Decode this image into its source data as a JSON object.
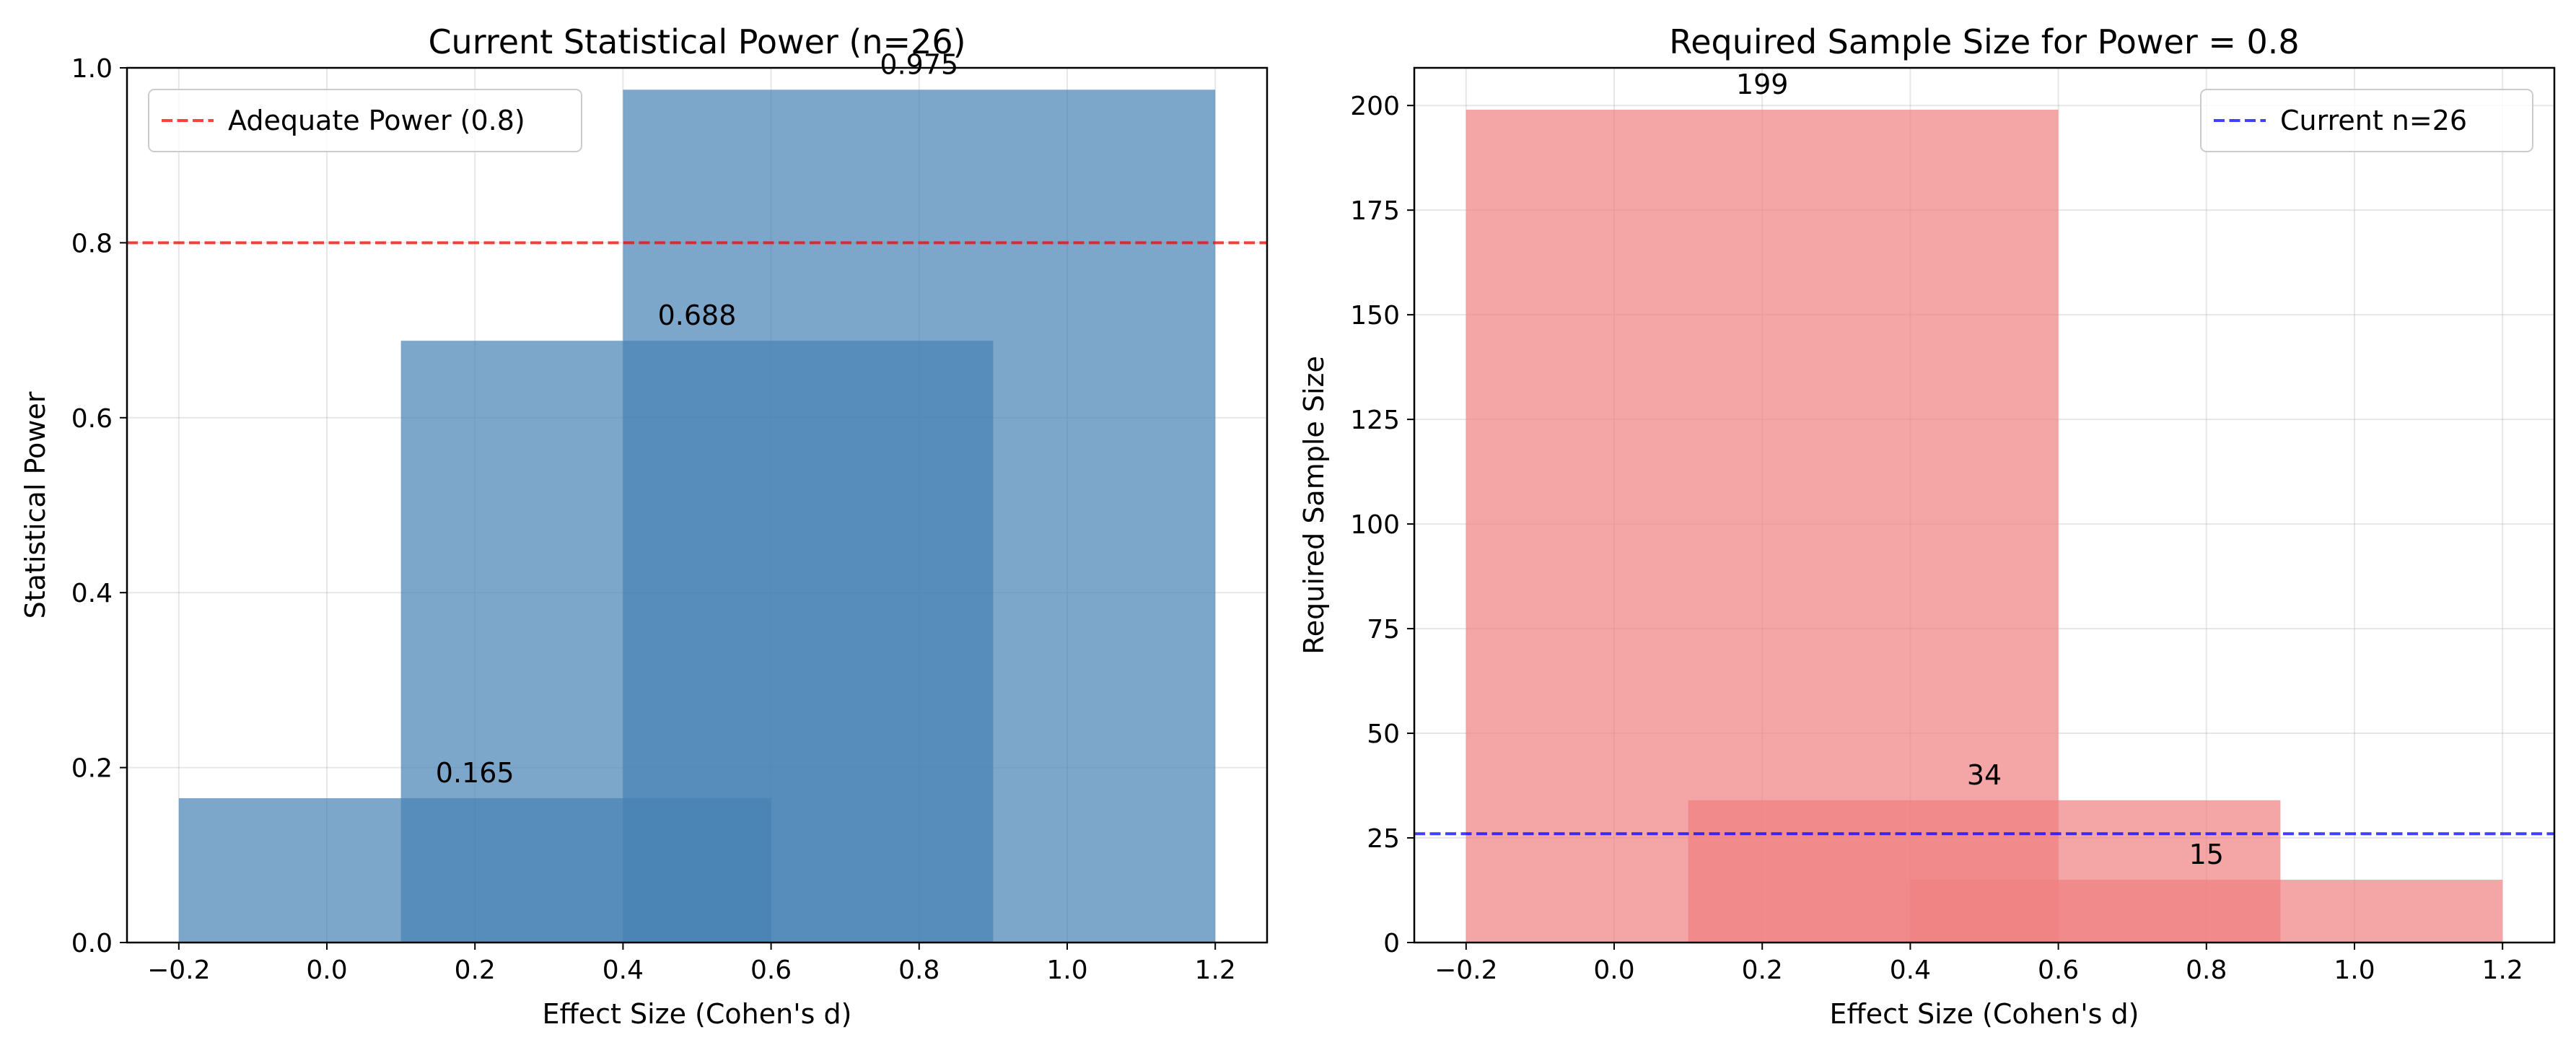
{
  "chart_data": [
    {
      "type": "bar",
      "title": "Current Statistical Power (n=26)",
      "xlabel": "Effect Size (Cohen's d)",
      "ylabel": "Statistical Power",
      "bar_width": 0.8,
      "x": [
        0.2,
        0.5,
        0.8
      ],
      "values": [
        0.165,
        0.688,
        0.975
      ],
      "bar_labels": [
        "0.165",
        "0.688",
        "0.975"
      ],
      "xlim": [
        -0.27,
        1.27
      ],
      "ylim": [
        0.0,
        1.0
      ],
      "xticks": [
        -0.2,
        0.0,
        0.2,
        0.4,
        0.6,
        0.8,
        1.0,
        1.2
      ],
      "xtick_labels": [
        "−0.2",
        "0.0",
        "0.2",
        "0.4",
        "0.6",
        "0.8",
        "1.0",
        "1.2"
      ],
      "yticks": [
        0.0,
        0.2,
        0.4,
        0.6,
        0.8,
        1.0
      ],
      "ytick_labels": [
        "0.0",
        "0.2",
        "0.4",
        "0.6",
        "0.8",
        "1.0"
      ],
      "bar_color": "#4682b4",
      "reference_line": {
        "y": 0.8,
        "label": "Adequate Power (0.8)",
        "color": "#ff0000",
        "style": "dashed"
      },
      "legend": "upper left",
      "grid": true
    },
    {
      "type": "bar",
      "title": "Required Sample Size for Power = 0.8",
      "xlabel": "Effect Size (Cohen's d)",
      "ylabel": "Required Sample Size",
      "bar_width": 0.8,
      "x": [
        0.2,
        0.5,
        0.8
      ],
      "values": [
        199,
        34,
        15
      ],
      "bar_labels": [
        "199",
        "34",
        "15"
      ],
      "xlim": [
        -0.27,
        1.27
      ],
      "ylim": [
        0,
        209
      ],
      "xticks": [
        -0.2,
        0.0,
        0.2,
        0.4,
        0.6,
        0.8,
        1.0,
        1.2
      ],
      "xtick_labels": [
        "−0.2",
        "0.0",
        "0.2",
        "0.4",
        "0.6",
        "0.8",
        "1.0",
        "1.2"
      ],
      "yticks": [
        0,
        25,
        50,
        75,
        100,
        125,
        150,
        175,
        200
      ],
      "ytick_labels": [
        "0",
        "25",
        "50",
        "75",
        "100",
        "125",
        "150",
        "175",
        "200"
      ],
      "bar_color": "#f08080",
      "reference_line": {
        "y": 26,
        "label": "Current n=26",
        "color": "#0000ff",
        "style": "dashed"
      },
      "legend": "upper right",
      "grid": true
    }
  ]
}
